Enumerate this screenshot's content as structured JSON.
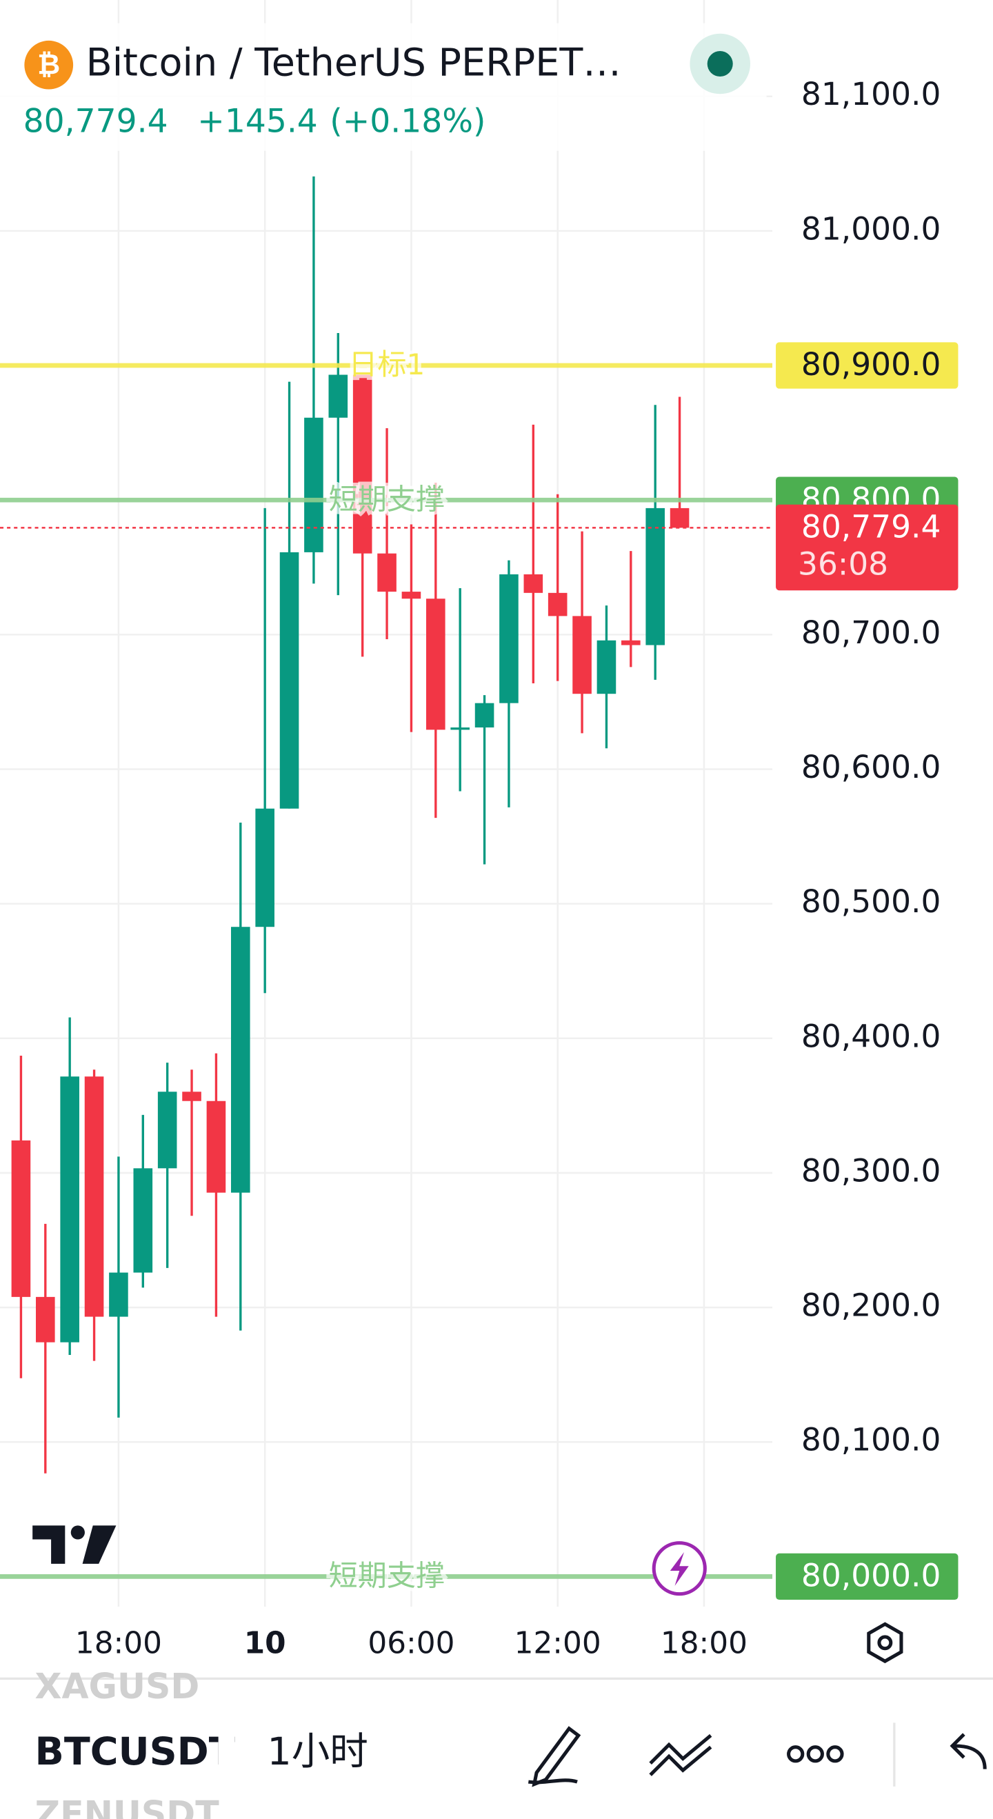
{
  "header": {
    "title": "Bitcoin / TetherUS PERPET…",
    "price": "80,779.4",
    "change": "+145.4",
    "change_pct": "(+0.18%)"
  },
  "chart_data": {
    "type": "candlestick",
    "series": [
      {
        "up_color": "#089981",
        "down_color": "#f23645",
        "open": [
          80324.1,
          80207.8,
          80174.1,
          80371.6,
          80193.1,
          80225.9,
          80303.4,
          80360.3,
          80353.4,
          80285.3,
          80482.8,
          80570.7,
          80761.2,
          80861.2,
          80893.1,
          80760.3,
          80731.9,
          80726.7,
          80629.3,
          80631,
          80649.1,
          80744.8,
          80731,
          80713.8,
          80656,
          80695.7,
          80692.2,
          80794
        ],
        "high": [
          80387.1,
          80262.1,
          80415.5,
          80376.7,
          80312.1,
          80343.1,
          80381.9,
          80376.7,
          80388.8,
          80560.3,
          80794,
          80887.9,
          81040.5,
          80924.1,
          80893.1,
          80853.4,
          80781.9,
          80812.9,
          80734.5,
          80655,
          80755.2,
          80856,
          80804.3,
          80776.7,
          80721.6,
          80762.1,
          80870.7,
          80876.7
        ],
        "low": [
          80147.4,
          80076.7,
          80164.7,
          80160.3,
          80118.1,
          80214.7,
          80229.3,
          80268.1,
          80193.1,
          80182.8,
          80433.6,
          80570.7,
          80737.9,
          80729.3,
          80683.6,
          80696.6,
          80627.6,
          80563.8,
          80583.6,
          80529.3,
          80571.6,
          80663.8,
          80665.5,
          80626.7,
          80615.5,
          80675.9,
          80666.4,
          80779.4
        ],
        "close": [
          80207.8,
          80174.1,
          80371.6,
          80193.1,
          80225.9,
          80303.4,
          80360.3,
          80353.4,
          80285.3,
          80482.8,
          80570.7,
          80761.2,
          80861.2,
          80893.1,
          80760.3,
          80731.9,
          80726.7,
          80629.3,
          80631,
          80649.1,
          80744.8,
          80731,
          80713.8,
          80656,
          80695.7,
          80692.2,
          80794,
          80779.4
        ]
      }
    ],
    "xlim": [
      -0.86,
      30.8
    ],
    "xticks": [
      {
        "value": 4,
        "label": "18:00"
      },
      {
        "value": 10,
        "label": "10"
      },
      {
        "value": 16,
        "label": "06:00"
      },
      {
        "value": 22,
        "label": "12:00"
      },
      {
        "value": 28,
        "label": "18:00"
      }
    ],
    "ylim": [
      79977.6,
      81171.6
    ],
    "yticks": [
      {
        "value": 81100,
        "label": "81,100.0"
      },
      {
        "value": 81000,
        "label": "81,000.0"
      },
      {
        "value": 80700,
        "label": "80,700.0"
      },
      {
        "value": 80600,
        "label": "80,600.0"
      },
      {
        "value": 80500,
        "label": "80,500.0"
      },
      {
        "value": 80400,
        "label": "80,400.0"
      },
      {
        "value": 80300,
        "label": "80,300.0"
      },
      {
        "value": 80200,
        "label": "80,200.0"
      },
      {
        "value": 80100,
        "label": "80,100.0"
      }
    ],
    "levels": [
      {
        "name": "日标1",
        "value": 80900,
        "value_label": "80,900.0",
        "color": "#f5e94f",
        "label_color": "#131722"
      },
      {
        "name": "短期支撑",
        "value": 80800,
        "value_label": "80,800.0",
        "color": "#8fcf8f",
        "box_color": "#4caf50",
        "label_color": "#ffffff"
      },
      {
        "name": "短期支撑",
        "value": 80000,
        "value_label": "80,000.0",
        "color": "#8fcf8f",
        "box_color": "#4caf50",
        "label_color": "#ffffff"
      }
    ],
    "last_price": {
      "value": 80779.4,
      "label": "80,779.4",
      "countdown": "36:08",
      "color": "#f23645"
    },
    "grid": true
  },
  "toolbar": {
    "symbol_above": "XAGUSD",
    "symbol": "BTCUSDT",
    "interval": "1小时",
    "symbol_below": "ZENUSDT"
  }
}
